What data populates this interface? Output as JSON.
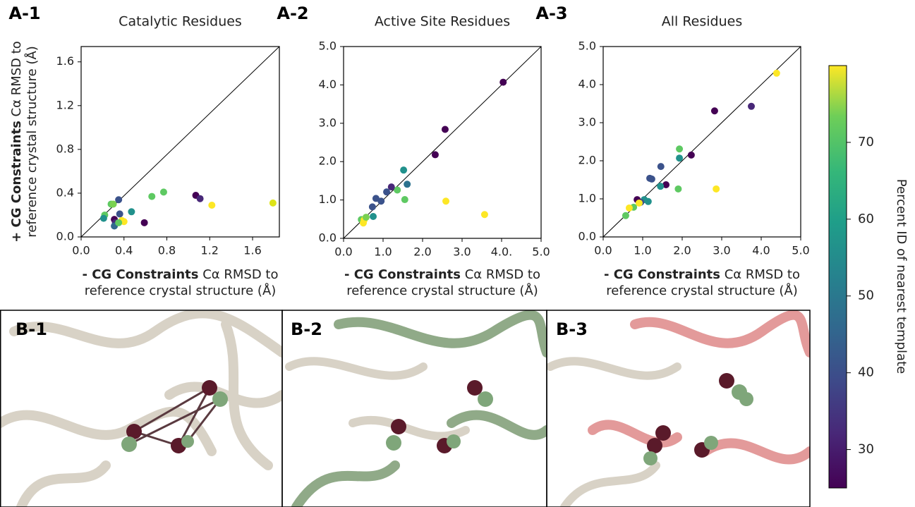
{
  "chart_data": [
    {
      "type": "scatter",
      "panel_label": "A-1",
      "title": "Catalytic Residues",
      "x_label": {
        "bold": "- CG Constraints",
        "line1": "Cα RMSD to",
        "line2": "reference crystal structure (Å)"
      },
      "y_label": {
        "bold": "+ CG Constraints",
        "line1": "Cα RMSD to",
        "line2": "reference  crystal structure (Å)"
      },
      "xlim": [
        0,
        1.85
      ],
      "ylim": [
        0,
        1.74
      ],
      "xticks": [
        {
          "value": 0,
          "label": "0.0"
        },
        0.4,
        0.8,
        1.2,
        1.6
      ],
      "yticks": [
        {
          "value": 0,
          "label": "0.0"
        },
        0.4,
        0.8,
        1.2,
        1.6
      ],
      "x": [
        0.77,
        0.66,
        0.22,
        0.21,
        0.28,
        0.3,
        0.35,
        0.31,
        0.32,
        0.31,
        0.36,
        0.4,
        0.38,
        0.35,
        0.47,
        0.59,
        1.07,
        1.11,
        1.22,
        1.79
      ],
      "values": [
        0.41,
        0.37,
        0.2,
        0.17,
        0.3,
        0.3,
        0.34,
        0.16,
        0.13,
        0.1,
        0.21,
        0.14,
        0.15,
        0.13,
        0.23,
        0.13,
        0.38,
        0.35,
        0.29,
        0.31
      ],
      "colors": [
        "#5ec962",
        "#5ec962",
        "#5ec962",
        "#21918c",
        "#5ec962",
        "#7ad151",
        "#3b528b",
        "#440154",
        "#482878",
        "#31688e",
        "#3b528b",
        "#fde725",
        "#fde725",
        "#5ec962",
        "#21918c",
        "#440154",
        "#440154",
        "#482878",
        "#fde725",
        "#dde318"
      ]
    },
    {
      "type": "scatter",
      "panel_label": "A-2",
      "title": "Active Site Residues",
      "x_label": {
        "bold": "- CG Constraints",
        "line1": "Cα RMSD to",
        "line2": "reference crystal structure (Å)"
      },
      "xlim": [
        0,
        5
      ],
      "ylim": [
        0,
        5
      ],
      "xticks": [
        {
          "value": 0,
          "label": "0.0"
        },
        {
          "value": 1,
          "label": "1.0"
        },
        {
          "value": 2,
          "label": "2.0"
        },
        {
          "value": 3,
          "label": "3.0"
        },
        {
          "value": 4,
          "label": "4.0."
        },
        {
          "value": 5,
          "label": "5.0"
        }
      ],
      "yticks": [
        {
          "value": 0,
          "label": "0.0"
        },
        {
          "value": 1,
          "label": "1.0"
        },
        {
          "value": 2,
          "label": "2.0"
        },
        {
          "value": 3,
          "label": "3.0"
        },
        {
          "value": 4,
          "label": "4.0"
        },
        {
          "value": 5,
          "label": "5.0"
        }
      ],
      "x": [
        4.04,
        2.57,
        2.32,
        2.59,
        3.57,
        1.52,
        1.61,
        1.55,
        1.36,
        1.21,
        1.09,
        0.95,
        0.82,
        0.73,
        0.75,
        0.45,
        0.5,
        0.52,
        0.57
      ],
      "values": [
        4.07,
        2.84,
        2.18,
        0.97,
        0.62,
        1.78,
        1.41,
        1.01,
        1.26,
        1.34,
        1.21,
        0.97,
        1.04,
        0.82,
        0.57,
        0.49,
        0.4,
        0.48,
        0.55
      ],
      "colors": [
        "#440154",
        "#440154",
        "#440154",
        "#fde725",
        "#fde725",
        "#21918c",
        "#2c728e",
        "#5ec962",
        "#5ec962",
        "#482878",
        "#3b528b",
        "#3b528b",
        "#3b528b",
        "#3b528b",
        "#21918c",
        "#5ec962",
        "#fde725",
        "#fde725",
        "#7ad151"
      ]
    },
    {
      "type": "scatter",
      "panel_label": "A-3",
      "title": "All Residues",
      "x_label": {
        "bold": "- CG Constraints",
        "line1": "Cα RMSD to",
        "line2": "reference crystal structure (Å)"
      },
      "xlim": [
        0,
        5
      ],
      "ylim": [
        0,
        5
      ],
      "xticks": [
        {
          "value": 0,
          "label": "0.0"
        },
        {
          "value": 1,
          "label": "1.0"
        },
        {
          "value": 2,
          "label": "2.0"
        },
        {
          "value": 3,
          "label": "3.0"
        },
        {
          "value": 4,
          "label": "4.0"
        },
        {
          "value": 5,
          "label": "5.0"
        }
      ],
      "yticks": [
        {
          "value": 0,
          "label": "0.0"
        },
        {
          "value": 1,
          "label": "1.0"
        },
        {
          "value": 2,
          "label": "2.0"
        },
        {
          "value": 3,
          "label": "3.0"
        },
        {
          "value": 4,
          "label": "4.0"
        },
        {
          "value": 5,
          "label": "5.0"
        }
      ],
      "x": [
        4.39,
        3.75,
        2.82,
        2.23,
        1.93,
        1.93,
        1.46,
        1.18,
        1.23,
        1.59,
        1.45,
        1.9,
        2.86,
        1.14,
        1.04,
        0.95,
        0.86,
        0.91,
        0.77,
        0.66,
        0.57
      ],
      "values": [
        4.3,
        3.43,
        3.31,
        2.15,
        2.31,
        2.07,
        1.85,
        1.54,
        1.52,
        1.37,
        1.33,
        1.26,
        1.26,
        0.93,
        0.98,
        0.91,
        0.98,
        0.89,
        0.78,
        0.76,
        0.56
      ],
      "colors": [
        "#fde725",
        "#482878",
        "#440154",
        "#440154",
        "#5ec962",
        "#21918c",
        "#3b528b",
        "#3b528b",
        "#3b528b",
        "#440154",
        "#21918c",
        "#5ec962",
        "#fde725",
        "#21918c",
        "#21918c",
        "#3b528b",
        "#440154",
        "#fde725",
        "#5ec962",
        "#fde725",
        "#5ec962"
      ]
    }
  ],
  "colorbar": {
    "label": "Percent ID of nearest template",
    "lim": [
      25,
      80
    ],
    "ticks": [
      30,
      40,
      50,
      60,
      70
    ]
  },
  "images": [
    {
      "label": "B-1"
    },
    {
      "label": "B-2"
    },
    {
      "label": "B-3"
    }
  ]
}
